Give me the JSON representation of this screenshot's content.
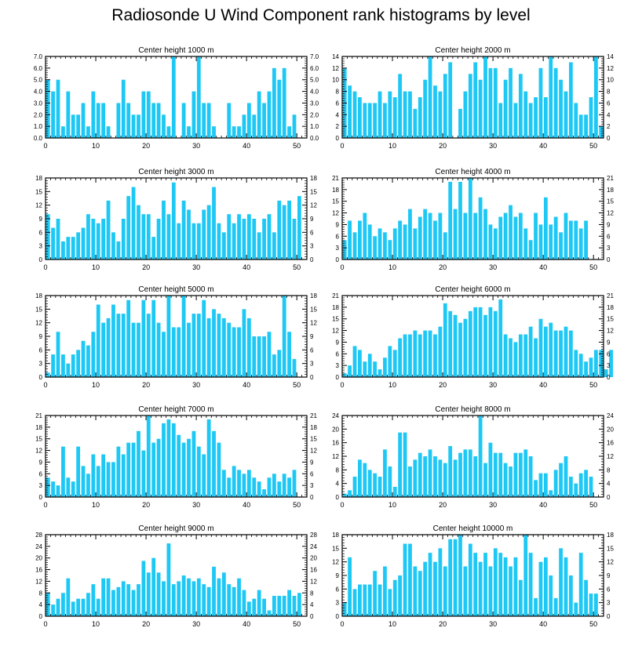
{
  "title": "Radiosonde U Wind Component rank histograms by level",
  "bar_color": "#1ec8f5",
  "chart_data": [
    {
      "type": "bar",
      "title": "Center height 1000 m",
      "xlim": [
        0,
        52
      ],
      "ylim": [
        0,
        7.0
      ],
      "xticks": [
        "0",
        "10",
        "20",
        "30",
        "40",
        "50"
      ],
      "yticks": [
        "0.0",
        "1.0",
        "2.0",
        "3.0",
        "4.0",
        "5.0",
        "6.0",
        "7.0"
      ],
      "values": [
        5,
        4,
        5,
        1,
        4,
        2,
        2,
        3,
        1,
        4,
        3,
        3,
        1,
        0,
        3,
        5,
        3,
        2,
        2,
        4,
        4,
        3,
        3,
        2,
        1,
        7,
        0,
        3,
        1,
        4,
        7,
        3,
        3,
        1,
        0,
        0,
        3,
        1,
        1,
        2,
        3,
        2,
        4,
        3,
        4,
        6,
        5,
        6,
        1,
        2,
        0,
        0
      ]
    },
    {
      "type": "bar",
      "title": "Center height 2000 m",
      "xlim": [
        0,
        52
      ],
      "ylim": [
        0,
        14
      ],
      "xticks": [
        "0",
        "10",
        "20",
        "30",
        "40",
        "50"
      ],
      "yticks": [
        "0",
        "2",
        "4",
        "6",
        "8",
        "10",
        "12",
        "14"
      ],
      "values": [
        12,
        9,
        8,
        7,
        6,
        6,
        6,
        8,
        6,
        8,
        7,
        11,
        8,
        8,
        5,
        7,
        10,
        14,
        9,
        8,
        11,
        13,
        0,
        5,
        8,
        11,
        13,
        10,
        14,
        12,
        12,
        6,
        10,
        12,
        6,
        11,
        8,
        6,
        7,
        12,
        7,
        14,
        12,
        10,
        8,
        13,
        6,
        4,
        4,
        7,
        14,
        2
      ]
    },
    {
      "type": "bar",
      "title": "Center height 3000 m",
      "xlim": [
        0,
        52
      ],
      "ylim": [
        0,
        18
      ],
      "xticks": [
        "0",
        "10",
        "20",
        "30",
        "40",
        "50"
      ],
      "yticks": [
        "0",
        "3",
        "6",
        "9",
        "12",
        "15",
        "18"
      ],
      "values": [
        10,
        7,
        9,
        4,
        5,
        5,
        6,
        7,
        10,
        9,
        8,
        9,
        13,
        6,
        4,
        9,
        14,
        16,
        12,
        10,
        10,
        5,
        9,
        13,
        10,
        17,
        8,
        13,
        11,
        8,
        8,
        11,
        12,
        16,
        8,
        6,
        10,
        8,
        10,
        9,
        10,
        9,
        6,
        9,
        10,
        6,
        13,
        12,
        13,
        9,
        14,
        0
      ]
    },
    {
      "type": "bar",
      "title": "Center height 4000 m",
      "xlim": [
        0,
        52
      ],
      "ylim": [
        0,
        21
      ],
      "xticks": [
        "0",
        "10",
        "20",
        "30",
        "40",
        "50"
      ],
      "yticks": [
        "0",
        "3",
        "6",
        "9",
        "12",
        "15",
        "18",
        "21"
      ],
      "values": [
        5,
        10,
        7,
        10,
        12,
        9,
        6,
        8,
        7,
        5,
        8,
        10,
        9,
        13,
        8,
        11,
        13,
        12,
        10,
        12,
        7,
        20,
        13,
        20,
        12,
        21,
        12,
        16,
        13,
        9,
        8,
        11,
        12,
        14,
        11,
        12,
        8,
        5,
        12,
        9,
        16,
        9,
        11,
        7,
        12,
        10,
        10,
        8,
        10,
        0,
        0,
        0
      ]
    },
    {
      "type": "bar",
      "title": "Center height 5000 m",
      "xlim": [
        0,
        52
      ],
      "ylim": [
        0,
        18
      ],
      "xticks": [
        "0",
        "10",
        "20",
        "30",
        "40",
        "50"
      ],
      "yticks": [
        "0",
        "3",
        "6",
        "9",
        "12",
        "15",
        "18"
      ],
      "values": [
        1,
        5,
        10,
        5,
        3,
        5,
        6,
        8,
        7,
        10,
        16,
        12,
        13,
        16,
        14,
        14,
        17,
        12,
        12,
        17,
        14,
        17,
        12,
        10,
        18,
        11,
        11,
        18,
        12,
        14,
        14,
        17,
        13,
        15,
        14,
        13,
        12,
        11,
        11,
        15,
        13,
        9,
        9,
        9,
        10,
        5,
        6,
        18,
        10,
        4,
        0,
        0
      ]
    },
    {
      "type": "bar",
      "title": "Center height 6000 m",
      "xlim": [
        0,
        52
      ],
      "ylim": [
        0,
        21
      ],
      "xticks": [
        "0",
        "10",
        "20",
        "30",
        "40",
        "50"
      ],
      "yticks": [
        "0",
        "3",
        "6",
        "9",
        "12",
        "15",
        "18",
        "21"
      ],
      "values": [
        1,
        3,
        8,
        7,
        4,
        6,
        4,
        2,
        5,
        8,
        7,
        10,
        11,
        11,
        12,
        11,
        12,
        12,
        11,
        13,
        19,
        17,
        16,
        14,
        15,
        17,
        18,
        18,
        16,
        18,
        17,
        20,
        11,
        10,
        9,
        11,
        11,
        13,
        10,
        15,
        13,
        14,
        12,
        12,
        13,
        12,
        7,
        6,
        4,
        5,
        7,
        7,
        2,
        7
      ]
    },
    {
      "type": "bar",
      "title": "Center height 7000 m",
      "xlim": [
        0,
        52
      ],
      "ylim": [
        0,
        21
      ],
      "xticks": [
        "0",
        "10",
        "20",
        "30",
        "40",
        "50"
      ],
      "yticks": [
        "0",
        "3",
        "6",
        "9",
        "12",
        "15",
        "18",
        "21"
      ],
      "values": [
        5,
        4,
        3,
        13,
        5,
        4,
        13,
        8,
        6,
        11,
        8,
        11,
        9,
        9,
        13,
        11,
        14,
        14,
        17,
        12,
        21,
        14,
        15,
        19,
        20,
        19,
        16,
        14,
        15,
        17,
        13,
        11,
        20,
        17,
        14,
        7,
        5,
        8,
        7,
        6,
        7,
        5,
        4,
        2,
        5,
        6,
        4,
        6,
        5,
        7,
        0,
        0
      ]
    },
    {
      "type": "bar",
      "title": "Center height 8000 m",
      "xlim": [
        0,
        52
      ],
      "ylim": [
        0,
        24
      ],
      "xticks": [
        "0",
        "10",
        "20",
        "30",
        "40",
        "50"
      ],
      "yticks": [
        "0",
        "4",
        "8",
        "12",
        "16",
        "20",
        "24"
      ],
      "values": [
        1,
        2,
        6,
        11,
        10,
        8,
        7,
        6,
        14,
        9,
        3,
        19,
        19,
        9,
        11,
        13,
        12,
        14,
        12,
        11,
        10,
        15,
        11,
        13,
        14,
        14,
        12,
        24,
        10,
        16,
        13,
        13,
        10,
        9,
        13,
        13,
        14,
        12,
        5,
        7,
        7,
        2,
        8,
        10,
        12,
        6,
        4,
        7,
        8,
        6,
        0,
        0
      ]
    },
    {
      "type": "bar",
      "title": "Center height 9000 m",
      "xlim": [
        0,
        52
      ],
      "ylim": [
        0,
        28
      ],
      "xticks": [
        "0",
        "10",
        "20",
        "30",
        "40",
        "50"
      ],
      "yticks": [
        "0",
        "4",
        "8",
        "12",
        "16",
        "20",
        "24",
        "28"
      ],
      "values": [
        8,
        4,
        6,
        8,
        13,
        5,
        6,
        6,
        8,
        11,
        6,
        13,
        13,
        9,
        10,
        12,
        11,
        9,
        11,
        19,
        15,
        20,
        15,
        12,
        25,
        11,
        12,
        14,
        13,
        12,
        13,
        11,
        10,
        17,
        13,
        15,
        11,
        10,
        13,
        9,
        5,
        6,
        9,
        6,
        2,
        7,
        7,
        7,
        9,
        7,
        8,
        0
      ]
    },
    {
      "type": "bar",
      "title": "Center height 10000 m",
      "xlim": [
        0,
        52
      ],
      "ylim": [
        0,
        18
      ],
      "xticks": [
        "0",
        "10",
        "20",
        "30",
        "40",
        "50"
      ],
      "yticks": [
        "0",
        "3",
        "6",
        "9",
        "12",
        "15",
        "18"
      ],
      "values": [
        3,
        13,
        6,
        7,
        7,
        7,
        10,
        7,
        11,
        6,
        8,
        9,
        16,
        16,
        11,
        10,
        12,
        14,
        12,
        15,
        11,
        17,
        17,
        18,
        11,
        16,
        14,
        12,
        14,
        11,
        15,
        14,
        13,
        11,
        13,
        8,
        18,
        14,
        4,
        12,
        13,
        9,
        4,
        15,
        13,
        9,
        3,
        14,
        8,
        5,
        5,
        0
      ]
    }
  ]
}
